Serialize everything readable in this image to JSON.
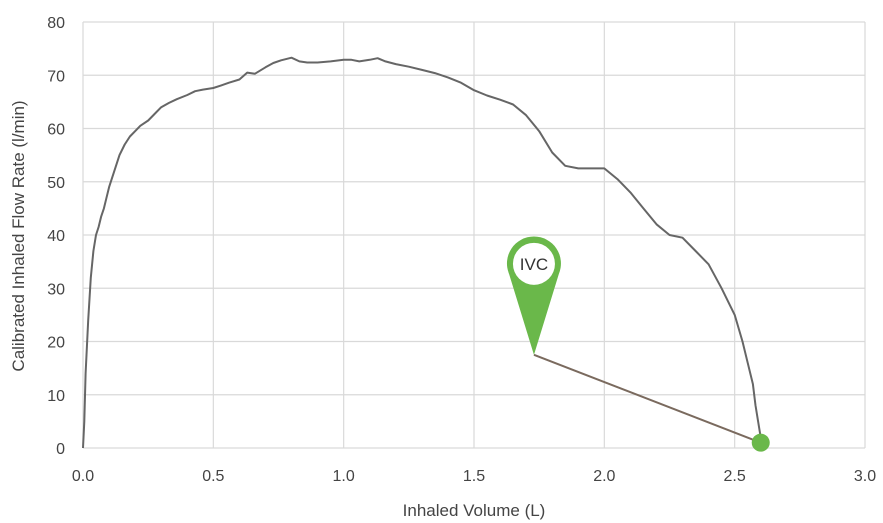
{
  "chart_data": {
    "type": "line",
    "xlabel": "Inhaled Volume (L)",
    "ylabel": "Calibrated Inhaled Flow Rate (l/min)",
    "xlim": [
      0,
      3.0
    ],
    "ylim": [
      0,
      80
    ],
    "x_ticks": [
      "0.0",
      "0.5",
      "1.0",
      "1.5",
      "2.0",
      "2.5",
      "3.0"
    ],
    "y_ticks": [
      "0",
      "10",
      "20",
      "30",
      "40",
      "50",
      "60",
      "70",
      "80"
    ],
    "grid": true,
    "series": [
      {
        "color": "#666666",
        "x": [
          0.0,
          0.005,
          0.01,
          0.02,
          0.03,
          0.04,
          0.05,
          0.06,
          0.07,
          0.08,
          0.09,
          0.1,
          0.12,
          0.14,
          0.16,
          0.18,
          0.2,
          0.22,
          0.25,
          0.28,
          0.3,
          0.33,
          0.36,
          0.4,
          0.43,
          0.46,
          0.5,
          0.53,
          0.56,
          0.6,
          0.63,
          0.66,
          0.7,
          0.73,
          0.76,
          0.8,
          0.83,
          0.86,
          0.9,
          0.95,
          1.0,
          1.03,
          1.06,
          1.1,
          1.13,
          1.16,
          1.2,
          1.25,
          1.3,
          1.35,
          1.4,
          1.45,
          1.5,
          1.55,
          1.6,
          1.65,
          1.7,
          1.75,
          1.8,
          1.85,
          1.9,
          1.95,
          2.0,
          2.05,
          2.1,
          2.15,
          2.2,
          2.25,
          2.3,
          2.35,
          2.4,
          2.45,
          2.5,
          2.53,
          2.55,
          2.57,
          2.58,
          2.59,
          2.6,
          2.605
        ],
        "y": [
          0.0,
          5.0,
          14.0,
          24.0,
          32.0,
          37.0,
          40.0,
          41.5,
          43.5,
          45.0,
          47.0,
          49.0,
          52.0,
          55.0,
          57.0,
          58.5,
          59.5,
          60.5,
          61.5,
          63.0,
          64.0,
          64.8,
          65.5,
          66.3,
          67.0,
          67.3,
          67.6,
          68.1,
          68.6,
          69.2,
          70.5,
          70.3,
          71.5,
          72.3,
          72.8,
          73.3,
          72.6,
          72.4,
          72.4,
          72.6,
          72.9,
          72.9,
          72.6,
          72.9,
          73.2,
          72.6,
          72.1,
          71.6,
          71.0,
          70.4,
          69.6,
          68.6,
          67.2,
          66.2,
          65.4,
          64.5,
          62.5,
          59.5,
          55.5,
          53.0,
          52.5,
          52.5,
          52.5,
          50.5,
          48.0,
          45.0,
          42.0,
          40.0,
          39.5,
          37.0,
          34.5,
          30.0,
          25.0,
          20.0,
          16.0,
          12.0,
          8.0,
          5.0,
          2.0,
          1.0
        ]
      }
    ],
    "annotations": [
      {
        "label": "IVC",
        "marker_point": [
          2.6,
          1.0
        ],
        "callout_tip": [
          1.73,
          17.5
        ],
        "marker_color": "#6ab84a",
        "line_color": "#7a6a5e"
      }
    ]
  }
}
